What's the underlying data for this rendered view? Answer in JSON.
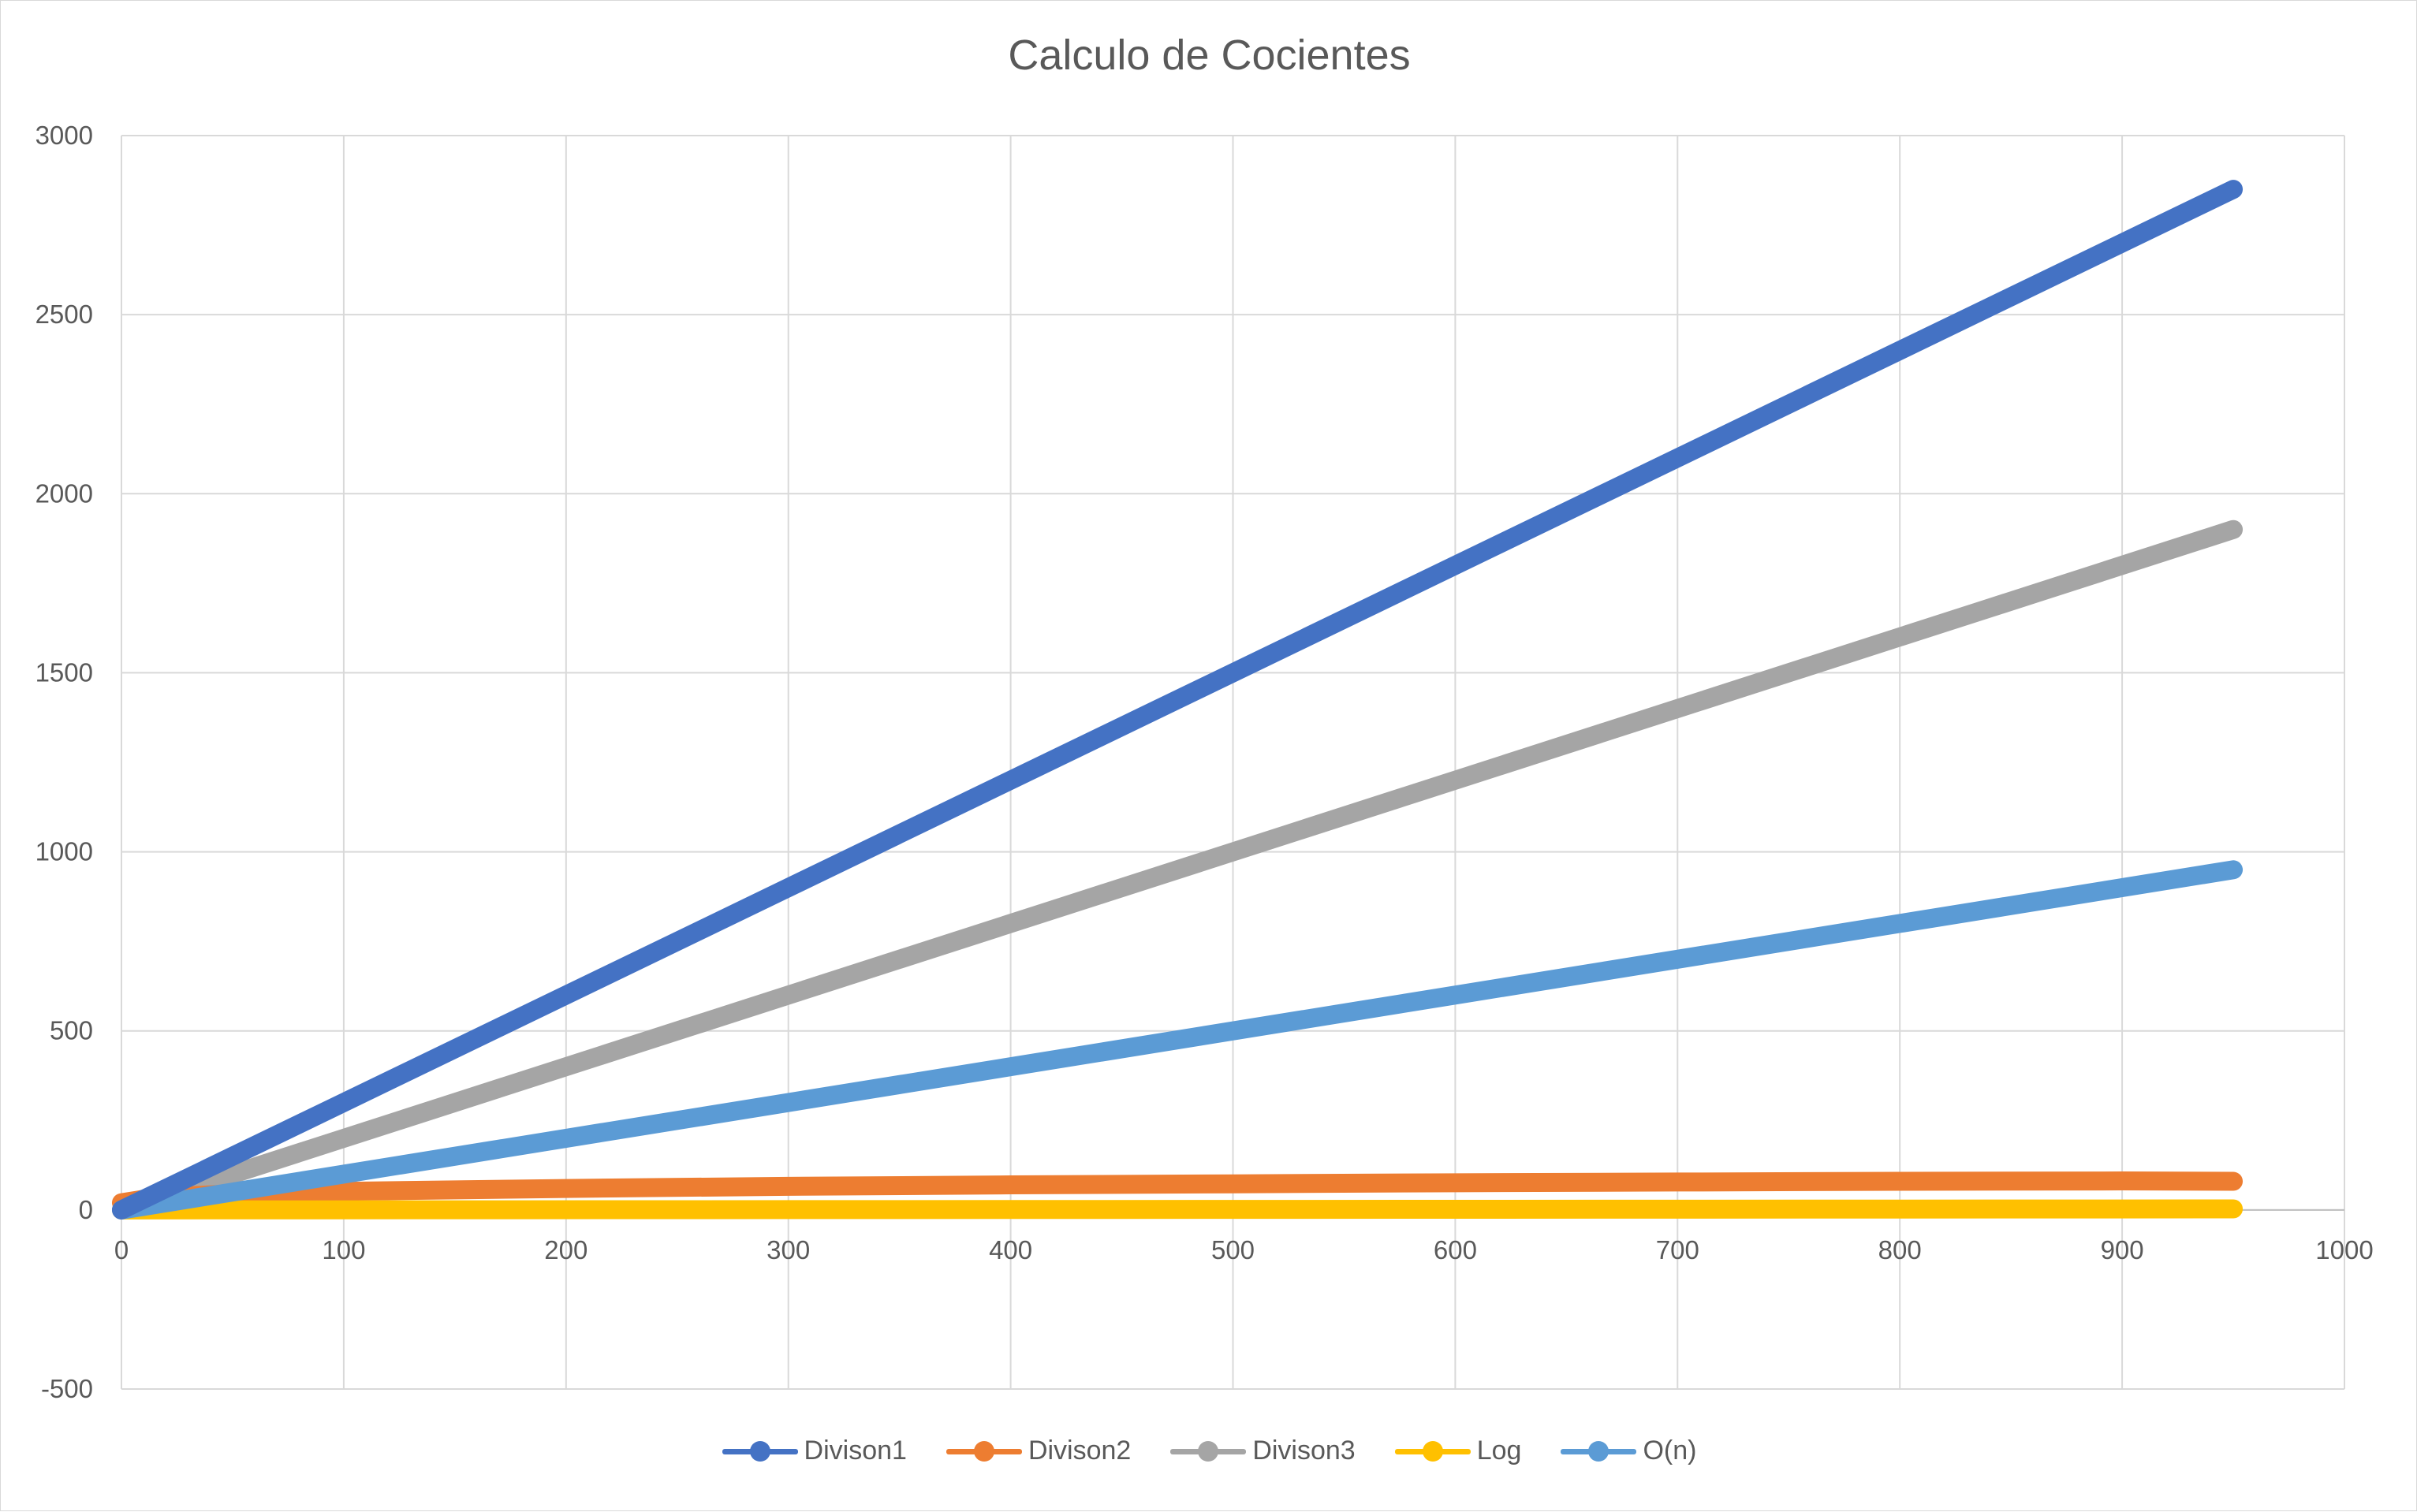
{
  "chart_data": {
    "type": "line",
    "title": "Calculo de Cocientes",
    "xlim": [
      0,
      1000
    ],
    "ylim": [
      -500,
      3000
    ],
    "x_ticks": [
      0,
      100,
      200,
      300,
      400,
      500,
      600,
      700,
      800,
      900,
      1000
    ],
    "y_ticks": [
      -500,
      0,
      500,
      1000,
      1500,
      2000,
      2500,
      3000
    ],
    "grid": true,
    "legend_position": "bottom",
    "series": [
      {
        "name": "Divison1",
        "color": "#4472C4",
        "x": [
          0,
          950
        ],
        "y": [
          0,
          2850
        ]
      },
      {
        "name": "Divison2",
        "color": "#ED7D31",
        "x": [
          0,
          10,
          25,
          50,
          100,
          200,
          300,
          400,
          500,
          600,
          700,
          800,
          900,
          950
        ],
        "y": [
          20,
          30,
          38,
          45,
          52,
          60,
          66,
          70,
          73,
          76,
          78,
          80,
          81,
          80
        ]
      },
      {
        "name": "Divison3",
        "color": "#A5A5A5",
        "x": [
          0,
          950
        ],
        "y": [
          0,
          1900
        ]
      },
      {
        "name": "Log",
        "color": "#FFC000",
        "x": [
          0,
          950
        ],
        "y": [
          0,
          3
        ]
      },
      {
        "name": "O(n)",
        "color": "#5B9BD5",
        "x": [
          0,
          950
        ],
        "y": [
          0,
          950
        ]
      }
    ]
  }
}
